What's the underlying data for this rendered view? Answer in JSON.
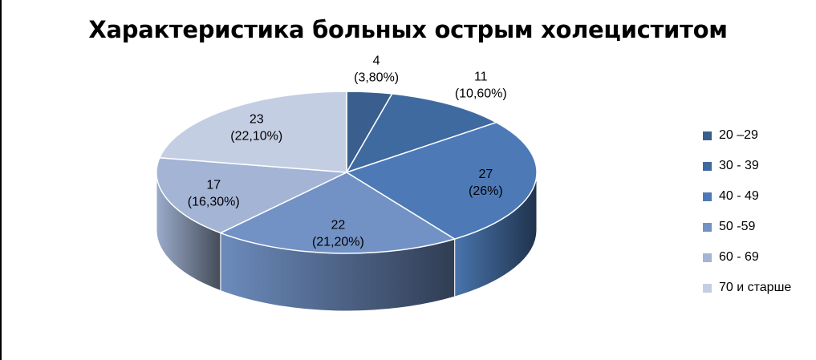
{
  "chart_data": {
    "type": "pie",
    "title": "Характеристика больных острым холециститом",
    "categories": [
      "20 –29",
      "30 - 39",
      "40 - 49",
      "50 -59",
      "60 - 69",
      "70 и старше"
    ],
    "values": [
      4,
      11,
      27,
      22,
      17,
      23
    ],
    "value_labels": [
      "4",
      "11",
      "27",
      "22",
      "17",
      "23"
    ],
    "percent_labels": [
      "(3,80%)",
      "(10,60%)",
      "(26%)",
      "(21,20%)",
      "(16,30%)",
      "(22,10%)"
    ],
    "colors": [
      "#3a5f8e",
      "#3f6aa0",
      "#4d7ab6",
      "#7292c6",
      "#a3b4d5",
      "#c4cee3"
    ],
    "legend_position": "right",
    "style": "3d-pie"
  }
}
